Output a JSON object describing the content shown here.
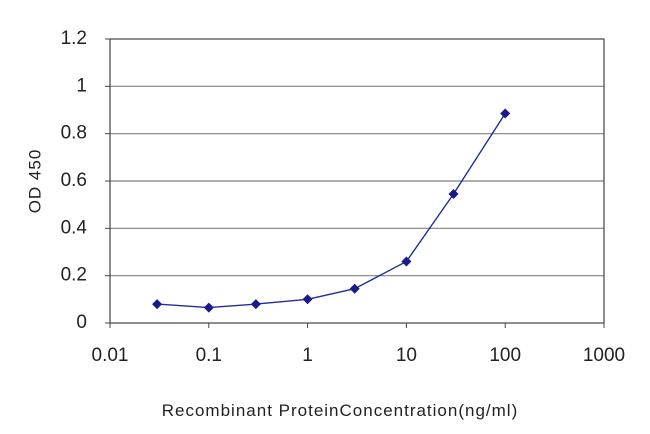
{
  "chart_data": {
    "type": "line",
    "title": "",
    "xlabel": "Recombinant ProteinConcentration(ng/ml)",
    "ylabel": "OD 450",
    "x_scale": "log",
    "xlim": [
      0.01,
      1000
    ],
    "ylim": [
      0,
      1.2
    ],
    "x_ticks": [
      "0.01",
      "0.1",
      "1",
      "10",
      "100",
      "1000"
    ],
    "y_ticks": [
      "0",
      "0.2",
      "0.4",
      "0.6",
      "0.8",
      "1",
      "1.2"
    ],
    "grid": "horizontal",
    "legend": "none",
    "series": [
      {
        "x": [
          0.03,
          0.1,
          0.3,
          1,
          3,
          10,
          30,
          100
        ],
        "y": [
          0.08,
          0.065,
          0.08,
          0.1,
          0.145,
          0.26,
          0.545,
          0.885
        ]
      }
    ],
    "colors": {
      "line": "#1f2f9a",
      "marker": "#1a1a8c",
      "grid": "#808080",
      "frame": "#444444"
    }
  }
}
